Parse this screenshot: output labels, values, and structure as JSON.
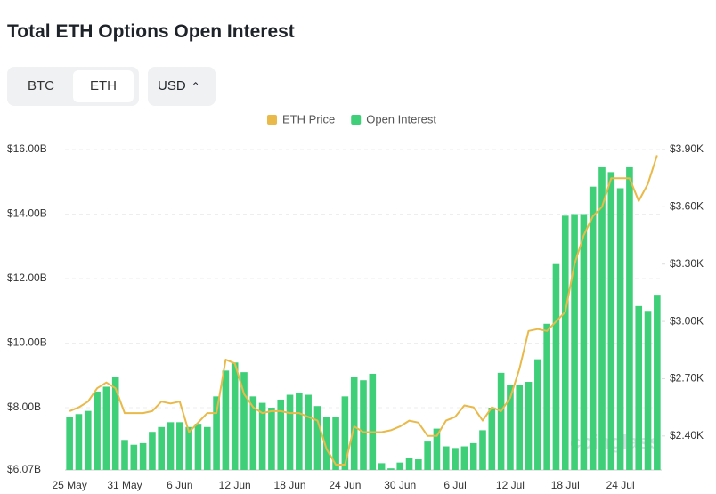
{
  "header": {
    "title": "Total ETH Options Open Interest"
  },
  "controls": {
    "tabs": [
      "BTC",
      "ETH"
    ],
    "active": "ETH",
    "currency": "USD"
  },
  "watermark": "coinglass",
  "chart_data": {
    "type": "bar-line",
    "categories": [
      "25 May",
      null,
      null,
      null,
      null,
      null,
      "31 May",
      null,
      null,
      null,
      null,
      null,
      "6 Jun",
      null,
      null,
      null,
      null,
      null,
      "12 Jun",
      null,
      null,
      null,
      null,
      null,
      "18 Jun",
      null,
      null,
      null,
      null,
      null,
      "24 Jun",
      null,
      null,
      null,
      null,
      null,
      "30 Jun",
      null,
      null,
      null,
      null,
      null,
      "6 Jul",
      null,
      null,
      null,
      null,
      null,
      "12 Jul",
      null,
      null,
      null,
      null,
      null,
      "18 Jul",
      null,
      null,
      null,
      null,
      null,
      "24 Jul",
      null,
      null,
      null,
      null
    ],
    "series": [
      {
        "name": "ETH Price",
        "type": "line",
        "axis": "y2",
        "color": "#e9b949",
        "values": [
          2.53,
          2.55,
          2.58,
          2.65,
          2.68,
          2.65,
          2.52,
          2.52,
          2.52,
          2.53,
          2.58,
          2.57,
          2.58,
          2.42,
          2.47,
          2.52,
          2.52,
          2.8,
          2.78,
          2.62,
          2.55,
          2.52,
          2.53,
          2.53,
          2.52,
          2.52,
          2.5,
          2.48,
          2.33,
          2.25,
          2.25,
          2.45,
          2.42,
          2.42,
          2.42,
          2.43,
          2.45,
          2.48,
          2.47,
          2.4,
          2.4,
          2.48,
          2.5,
          2.56,
          2.55,
          2.48,
          2.55,
          2.53,
          2.6,
          2.75,
          2.95,
          2.96,
          2.95,
          3.0,
          3.05,
          3.3,
          3.45,
          3.55,
          3.6,
          3.75,
          3.75,
          3.75,
          3.63,
          3.72,
          3.87
        ]
      },
      {
        "name": "Open Interest",
        "type": "bar",
        "color": "#3ecf78",
        "values": [
          7.72,
          7.8,
          7.9,
          8.5,
          8.65,
          8.95,
          7.0,
          6.85,
          6.9,
          7.25,
          7.4,
          7.55,
          7.55,
          7.4,
          7.5,
          7.4,
          8.35,
          9.15,
          9.4,
          9.1,
          8.35,
          8.15,
          8.0,
          8.25,
          8.4,
          8.45,
          8.4,
          8.05,
          7.7,
          7.7,
          8.35,
          8.95,
          8.85,
          9.05,
          6.28,
          6.12,
          6.3,
          6.45,
          6.4,
          6.95,
          7.35,
          6.8,
          6.75,
          6.8,
          6.9,
          7.3,
          8.0,
          9.08,
          8.7,
          8.7,
          8.8,
          9.5,
          10.6,
          12.45,
          13.95,
          14.0,
          14.0,
          14.85,
          15.45,
          15.3,
          14.8,
          15.45,
          11.15,
          11.0,
          11.5
        ]
      }
    ],
    "ylim": [
      6.07,
      16
    ],
    "yticks": [
      {
        "value": 6.07,
        "label": "$6.07B"
      },
      {
        "value": 8,
        "label": "$8.00B"
      },
      {
        "value": 10,
        "label": "$10.00B"
      },
      {
        "value": 12,
        "label": "$12.00B"
      },
      {
        "value": 14,
        "label": "$14.00B"
      },
      {
        "value": 16,
        "label": "$16.00B"
      }
    ],
    "y2lim": [
      2.222,
      3.9
    ],
    "y2ticks": [
      {
        "value": 2.4,
        "label": "$2.40K"
      },
      {
        "value": 2.7,
        "label": "$2.70K"
      },
      {
        "value": 3.0,
        "label": "$3.00K"
      },
      {
        "value": 3.3,
        "label": "$3.30K"
      },
      {
        "value": 3.6,
        "label": "$3.60K"
      },
      {
        "value": 3.9,
        "label": "$3.90K"
      }
    ],
    "grid": true
  }
}
